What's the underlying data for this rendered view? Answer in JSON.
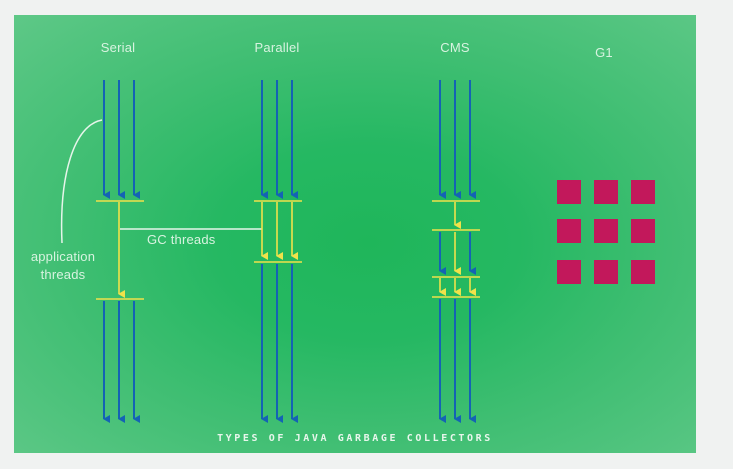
{
  "diagram": {
    "collectors": [
      {
        "name": "Serial"
      },
      {
        "name": "Parallel"
      },
      {
        "name": "CMS"
      },
      {
        "name": "G1"
      }
    ],
    "application_threads_label": "application\nthreads",
    "gc_threads_label": "GC threads",
    "caption": "Types of Java Garbage Collectors",
    "colors": {
      "background": "#2bba66",
      "application_thread": "#1565c0",
      "gc_thread": "#f0e24a",
      "g1_region": "#c2185b",
      "text": "#d8f3e0"
    }
  }
}
